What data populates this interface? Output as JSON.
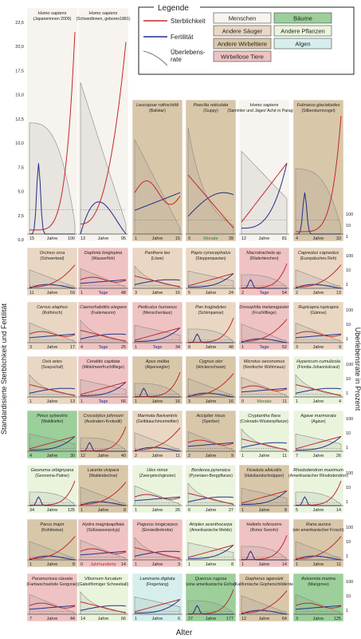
{
  "axis_labels": {
    "x": "Alter",
    "y_left": "Standardisierte Sterblichkeit und Fertilität",
    "y_right": "Überlebensrate in Prozent"
  },
  "left_ticks": [
    "22,5",
    "20,0",
    "17,5",
    "15,0",
    "12,5",
    "10,0",
    "7,5",
    "5,0",
    "2,5",
    "0,0"
  ],
  "right_ticks": [
    "100",
    "10",
    "1"
  ],
  "legend": {
    "title": "Legende",
    "lines": [
      {
        "label": "Sterblichkeit",
        "color": "#c0282c"
      },
      {
        "label": "Fertilität",
        "color": "#1f2f8a"
      },
      {
        "label": "Überlebens-\nrate",
        "color": "#777777"
      }
    ],
    "categories": [
      {
        "label": "Menschen",
        "color": "#f7f3ee"
      },
      {
        "label": "Bäume",
        "color": "#9ccf9a"
      },
      {
        "label": "Andere Säuger",
        "color": "#e9d7c3"
      },
      {
        "label": "Andere Pflanzen",
        "color": "#eaf4dd"
      },
      {
        "label": "Andere Wirbeltiere",
        "color": "#d9c7aa"
      },
      {
        "label": "Algen",
        "color": "#d6efec"
      },
      {
        "label": "Wirbellose Tiere",
        "color": "#efc3c3"
      }
    ]
  },
  "chart_data": {
    "type": "line",
    "title": "",
    "x_axis_word": "Jahre",
    "panels": [
      {
        "name": "Homo sapiens",
        "sub": "(Japanerinnen 2009)",
        "cat": "Menschen",
        "x": [
          "15",
          "Jahre",
          "100"
        ]
      },
      {
        "name": "Homo sapiens",
        "sub": "(Schwedinnen, geboren1881)",
        "cat": "Menschen",
        "x": [
          "13",
          "Jahre",
          "95"
        ]
      },
      {
        "name": "Leucopsar rothschildi",
        "sub": "(Balistar)",
        "cat": "Andere Wirbeltiere",
        "x": [
          "1",
          "Jahre",
          "15"
        ]
      },
      {
        "name": "Poecilia reticulata",
        "sub": "(Guppy)",
        "cat": "Andere Wirbeltiere",
        "x": [
          "0",
          "Monate",
          "39"
        ]
      },
      {
        "name": "Homo sapiens",
        "sub": "(Sammler und Jäger/ Aché in Paraguay)",
        "cat": "Menschen",
        "x": [
          "12",
          "Jahre",
          "81"
        ]
      },
      {
        "name": "Fulmarus glacialoides",
        "sub": "(Silbersturmvogel)",
        "cat": "Andere Wirbeltiere",
        "x": [
          "4",
          "Jahre",
          "33"
        ]
      },
      {
        "name": "Orcinus orca",
        "sub": "(Schwertwal)",
        "cat": "Andere Säuger",
        "x": [
          "11",
          "Jahre",
          "59"
        ]
      },
      {
        "name": "Daphnia longispina",
        "sub": "(Wasserfloh)",
        "cat": "Wirbellose Tiere",
        "x": [
          "1",
          "Tage",
          "48"
        ]
      },
      {
        "name": "Panthera leo",
        "sub": "(Löwe)",
        "cat": "Andere Säuger",
        "x": [
          "3",
          "Jahre",
          "16"
        ]
      },
      {
        "name": "Papio cynocephalus",
        "sub": "(Steppenpavian)",
        "cat": "Andere Säuger",
        "x": [
          "5",
          "Jahre",
          "24"
        ]
      },
      {
        "name": "Macrotrachela sp.",
        "sub": "(Rädertierchen)",
        "cat": "Wirbellose Tiere",
        "x": [
          "2",
          "Tage",
          "54"
        ]
      },
      {
        "name": "Capreolus capreolus",
        "sub": "(Europäisches Reh)",
        "cat": "Andere Säuger",
        "x": [
          "2",
          "Jahre",
          "13"
        ]
      },
      {
        "name": "Cervus elaphus",
        "sub": "(Rothirsch)",
        "cat": "Andere Säuger",
        "x": [
          "3",
          "Jahre",
          "17"
        ]
      },
      {
        "name": "Caenorhabditis elegans",
        "sub": "(Fadenwurm)",
        "cat": "Wirbellose Tiere",
        "x": [
          "4",
          "Tage",
          "25"
        ]
      },
      {
        "name": "Pediculus humanus",
        "sub": "(Menschenlaus)",
        "cat": "Wirbellose Tiere",
        "x": [
          "1",
          "Tage",
          "34"
        ]
      },
      {
        "name": "Pan troglodytes",
        "sub": "(Schimpanse)",
        "cat": "Andere Säuger",
        "x": [
          "8",
          "Jahre",
          "48"
        ]
      },
      {
        "name": "Drosophila melanogaster",
        "sub": "(Fruchtfliege)",
        "cat": "Wirbellose Tiere",
        "x": [
          "1",
          "Tage",
          "52"
        ]
      },
      {
        "name": "Rupicapra rupicapra",
        "sub": "(Gämse)",
        "cat": "Andere Säuger",
        "x": [
          "3",
          "Jahre",
          "9"
        ]
      },
      {
        "name": "Ovis aries",
        "sub": "(Soayschaf)",
        "cat": "Andere Säuger",
        "x": [
          "1",
          "Jahre",
          "13"
        ]
      },
      {
        "name": "Ceratitis capitata",
        "sub": "(Mittelmeerfruchtfliege)",
        "cat": "Wirbellose Tiere",
        "x": [
          "1",
          "Tage",
          "66"
        ]
      },
      {
        "name": "Apus melba",
        "sub": "(Alpensegler)",
        "cat": "Andere Wirbeltiere",
        "x": [
          "1",
          "Jahre",
          "16"
        ]
      },
      {
        "name": "Cygnus olor",
        "sub": "(Höckerschwan)",
        "cat": "Andere Wirbeltiere",
        "x": [
          "3",
          "Jahre",
          "16"
        ]
      },
      {
        "name": "Microtus oeconomus",
        "sub": "(Nordische Wühlmaus)",
        "cat": "Andere Säuger",
        "x": [
          "0",
          "Monate",
          "11"
        ]
      },
      {
        "name": "Hypericum cumulicola",
        "sub": "(Florida-Johanniskraut)",
        "cat": "Andere Pflanzen",
        "x": [
          "1",
          "Jahre",
          "4"
        ]
      },
      {
        "name": "Pinus sylvestris",
        "sub": "(Waldkiefer)",
        "cat": "Bäume",
        "x": [
          "4",
          "Jahre",
          "30"
        ]
      },
      {
        "name": "Crocodylus johnsoni",
        "sub": "(Australien-Krokodil)",
        "cat": "Andere Wirbeltiere",
        "x": [
          "12",
          "Jahre",
          "40"
        ]
      },
      {
        "name": "Marmota flaviventris",
        "sub": "(Gelbbauchmurmeltier)",
        "cat": "Andere Säuger",
        "x": [
          "2",
          "Jahre",
          "11"
        ]
      },
      {
        "name": "Accipiter nisus",
        "sub": "(Sperber)",
        "cat": "Andere Wirbeltiere",
        "x": [
          "2",
          "Jahre",
          "9"
        ]
      },
      {
        "name": "Cryptantha flava",
        "sub": "(Colorado-Wüstenpflanze)",
        "cat": "Andere Pflanzen",
        "x": [
          "1",
          "Jahre",
          "11"
        ]
      },
      {
        "name": "Agave marmorata",
        "sub": "(Agave)",
        "cat": "Andere Pflanzen",
        "x": [
          "7",
          "Jahre",
          "26"
        ]
      },
      {
        "name": "Geonoma orbignyana",
        "sub": "(Geonoma-Palme)",
        "cat": "Andere Pflanzen",
        "x": [
          "34",
          "Jahre",
          "125"
        ]
      },
      {
        "name": "Lacerta vivipara",
        "sub": "(Waldeidechse)",
        "cat": "Andere Wirbeltiere",
        "x": [
          "1",
          "Jahre",
          "8"
        ]
      },
      {
        "name": "Ulex minor",
        "sub": "(Zwergstechginster)",
        "cat": "Andere Pflanzen",
        "x": [
          "1",
          "Jahre",
          "26"
        ]
      },
      {
        "name": "Borderea pyrenaica",
        "sub": "(Pyrenäen-Bergpflanze)",
        "cat": "Andere Pflanzen",
        "x": [
          "6",
          "Jahre",
          "27"
        ]
      },
      {
        "name": "Ficedula albicollis",
        "sub": "(Halsbandschnäpper)",
        "cat": "Andere Wirbeltiere",
        "x": [
          "1",
          "Jahre",
          "8"
        ]
      },
      {
        "name": "Rhododendron maximum",
        "sub": "(Amerikanischer Rhododendron)",
        "cat": "Andere Pflanzen",
        "x": [
          "5",
          "Jahre",
          "14"
        ]
      },
      {
        "name": "Parus major",
        "sub": "(Kohlmeise)",
        "cat": "Andere Wirbeltiere",
        "x": [
          "1",
          "Jahre",
          "8"
        ]
      },
      {
        "name": "Hydra magnipapillata",
        "sub": "(Süßwasserpolyp)",
        "cat": "Wirbellose Tiere",
        "x": [
          "0",
          "Jahrhunderte",
          "14"
        ]
      },
      {
        "name": "Pagurus longicarpus",
        "sub": "(Einsiedlerkrebs)",
        "cat": "Wirbellose Tiere",
        "x": [
          "1",
          "Jahre",
          "3"
        ]
      },
      {
        "name": "Atriplex acanthocarpa",
        "sub": "(Amerikanische Melde)",
        "cat": "Andere Pflanzen",
        "x": [
          "1",
          "Jahre",
          "8"
        ]
      },
      {
        "name": "Haliotis rufescens",
        "sub": "(Rotes Seeohr)",
        "cat": "Wirbellose Tiere",
        "x": [
          "1",
          "Jahre",
          "14"
        ]
      },
      {
        "name": "Rana aurora",
        "sub": "(ein amerikanischer Frosch)",
        "cat": "Andere Wirbeltiere",
        "x": [
          "1",
          "Jahre",
          "11"
        ]
      },
      {
        "name": "Paramuricea clavata",
        "sub": "(Farbwechselnde Gorgonie)",
        "cat": "Wirbellose Tiere",
        "x": [
          "7",
          "Jahre",
          "44"
        ]
      },
      {
        "name": "Viburnum furcatum",
        "sub": "(Gabelförmiger Schneeball)",
        "cat": "Andere Pflanzen",
        "x": [
          "14",
          "Jahre",
          "66"
        ]
      },
      {
        "name": "Laminaria digitata",
        "sub": "(Fingertang)",
        "cat": "Algen",
        "x": [
          "1",
          "Jahre",
          "6"
        ]
      },
      {
        "name": "Quercus rugosa",
        "sub": "(eine amerikanische Eiche)",
        "cat": "Bäume",
        "x": [
          "27",
          "Jahre",
          "177"
        ]
      },
      {
        "name": "Gopherus agassizii",
        "sub": "(Kalifornische Gopherschildkröte)",
        "cat": "Andere Wirbeltiere",
        "x": [
          "12",
          "Jahre",
          "64"
        ]
      },
      {
        "name": "Avicennia marina",
        "sub": "(Mangrove)",
        "cat": "Bäume",
        "x": [
          "3",
          "Jahre",
          "125"
        ]
      }
    ]
  }
}
